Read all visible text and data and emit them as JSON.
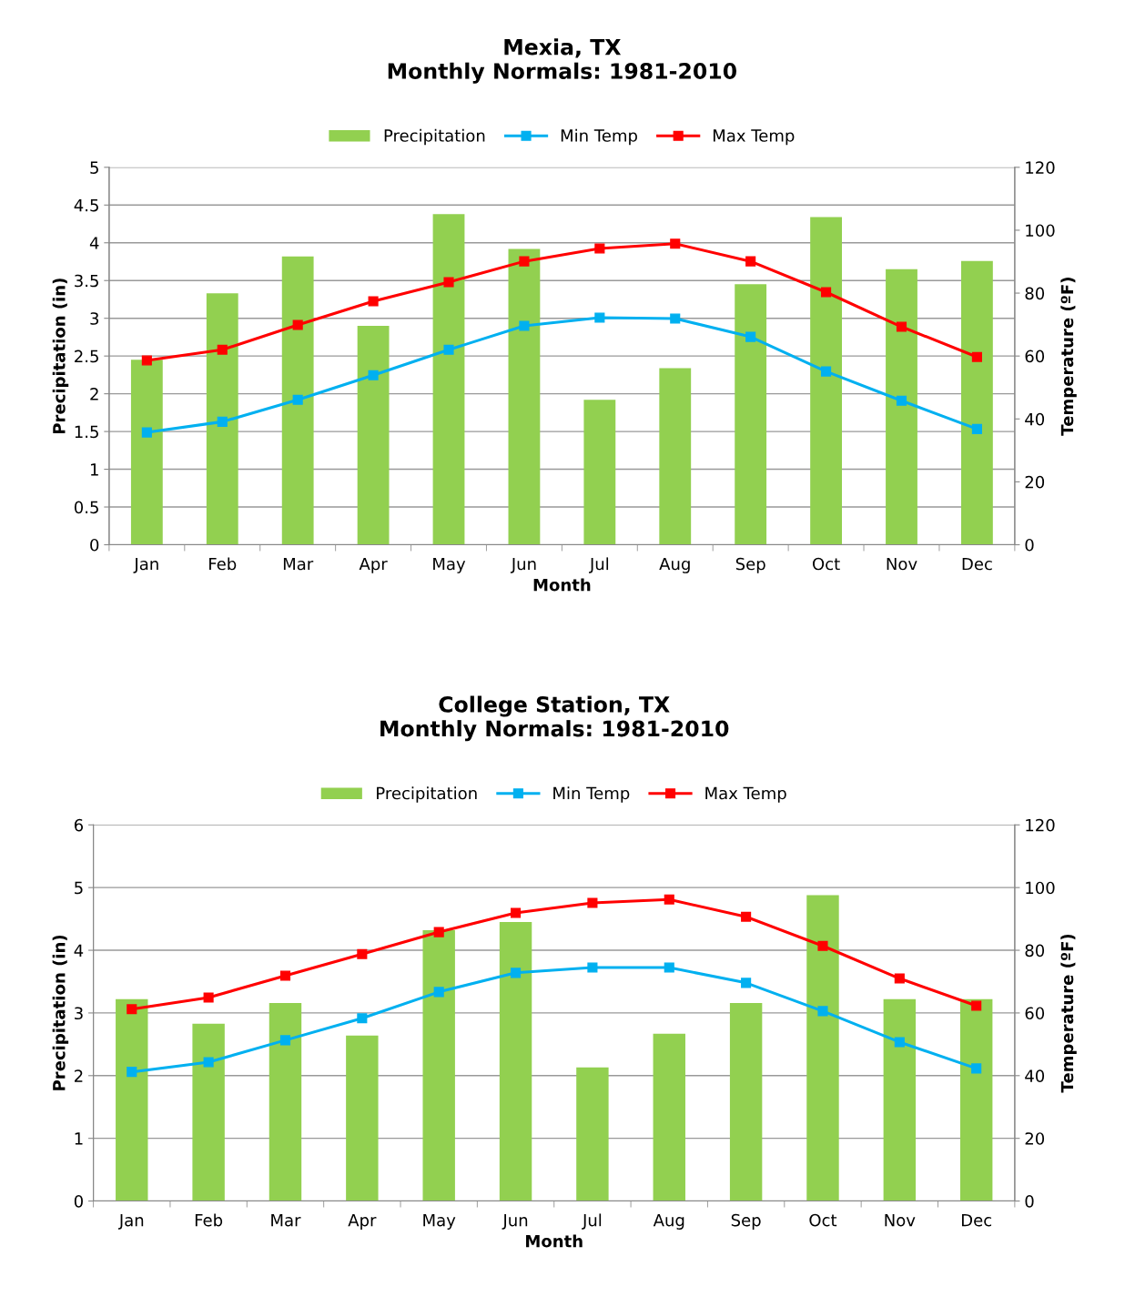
{
  "chart_data": [
    {
      "type": "bar",
      "title": "Mexia, TX\nMonthly Normals: 1981-2010",
      "xlabel": "Month",
      "ylabel": "Precipitation (in)",
      "y2label": "Temperature (ºF)",
      "categories": [
        "Jan",
        "Feb",
        "Mar",
        "Apr",
        "May",
        "Jun",
        "Jul",
        "Aug",
        "Sep",
        "Oct",
        "Nov",
        "Dec"
      ],
      "series": [
        {
          "name": "Precipitation",
          "color": "#92d050",
          "values": [
            2.45,
            3.33,
            3.82,
            2.9,
            4.38,
            3.92,
            1.92,
            2.34,
            3.45,
            4.34,
            3.65,
            3.76
          ]
        },
        {
          "name": "Min Temp",
          "type": "line",
          "axis": "y2",
          "color": "#00b0f0",
          "values": [
            35.7,
            39.1,
            46.1,
            53.9,
            62.0,
            69.6,
            72.2,
            71.9,
            66.1,
            55.1,
            45.8,
            36.8
          ]
        },
        {
          "name": "Max Temp",
          "type": "line",
          "axis": "y2",
          "color": "#ff0000",
          "values": [
            58.6,
            62.0,
            69.9,
            77.4,
            83.5,
            90.1,
            94.2,
            95.7,
            90.1,
            80.3,
            69.3,
            59.7
          ]
        }
      ],
      "ylim": [
        0,
        5
      ],
      "yticks": [
        0,
        0.5,
        1,
        1.5,
        2,
        2.5,
        3,
        3.5,
        4,
        4.5,
        5
      ],
      "y2lim": [
        0,
        120
      ],
      "y2ticks": [
        0,
        20,
        40,
        60,
        80,
        100,
        120
      ],
      "grid": "y",
      "legend": "top",
      "marker": "square",
      "line_style": "solid"
    },
    {
      "type": "bar",
      "title": "College Station, TX\nMonthly Normals: 1981-2010",
      "xlabel": "Month",
      "ylabel": "Precipitation (in)",
      "y2label": "Temperature (ºF)",
      "categories": [
        "Jan",
        "Feb",
        "Mar",
        "Apr",
        "May",
        "Jun",
        "Jul",
        "Aug",
        "Sep",
        "Oct",
        "Nov",
        "Dec"
      ],
      "series": [
        {
          "name": "Precipitation",
          "color": "#92d050",
          "values": [
            3.22,
            2.83,
            3.16,
            2.64,
            4.32,
            4.45,
            2.13,
            2.67,
            3.16,
            4.88,
            3.22,
            3.22
          ]
        },
        {
          "name": "Min Temp",
          "type": "line",
          "axis": "y2",
          "color": "#00b0f0",
          "values": [
            41.2,
            44.3,
            51.3,
            58.3,
            66.7,
            72.8,
            74.5,
            74.5,
            69.6,
            60.6,
            50.7,
            42.3
          ]
        },
        {
          "name": "Max Temp",
          "type": "line",
          "axis": "y2",
          "color": "#ff0000",
          "values": [
            61.2,
            64.9,
            71.9,
            78.8,
            85.8,
            91.9,
            95.1,
            96.2,
            90.7,
            81.4,
            71.0,
            62.3
          ]
        }
      ],
      "ylim": [
        0,
        6
      ],
      "yticks": [
        0,
        1,
        2,
        3,
        4,
        5,
        6
      ],
      "y2lim": [
        0,
        120
      ],
      "y2ticks": [
        0,
        20,
        40,
        60,
        80,
        100,
        120
      ],
      "grid": "y",
      "legend": "top",
      "marker": "square",
      "line_style": "solid"
    }
  ]
}
